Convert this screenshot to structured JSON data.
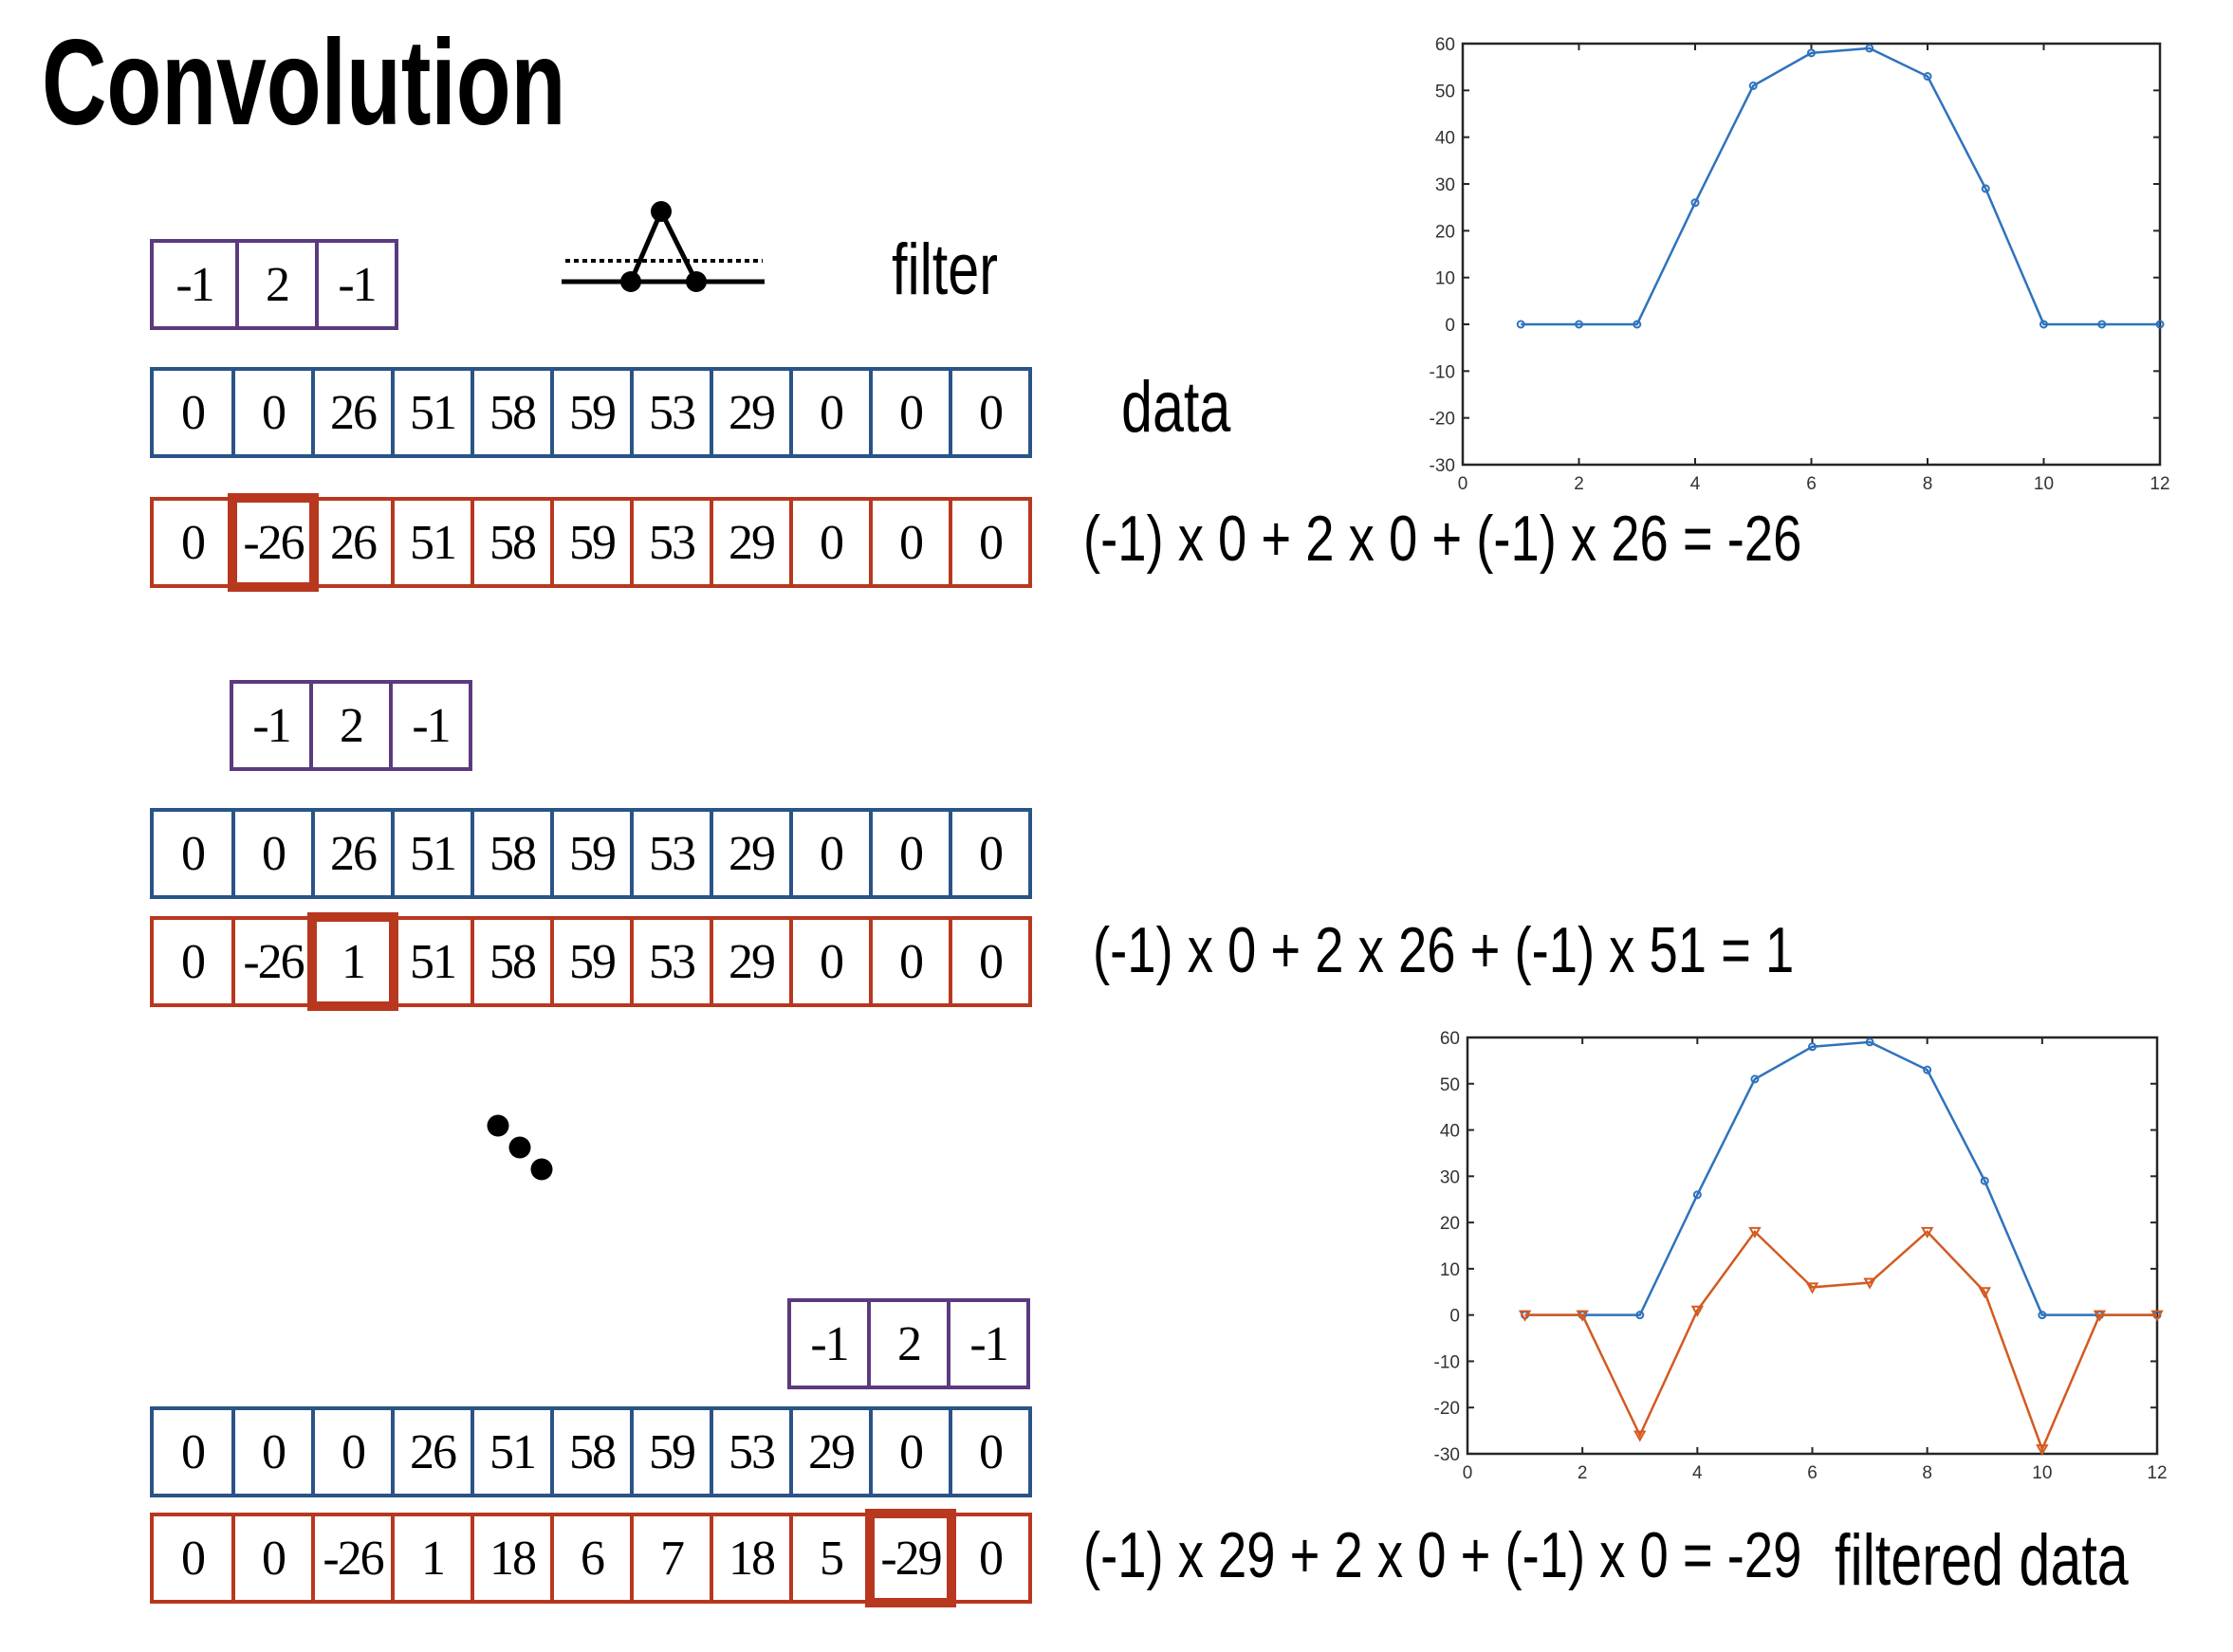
{
  "title": "Convolution",
  "labels": {
    "filter": "filter",
    "data": "data",
    "filtered_data": "filtered data"
  },
  "icons": {
    "filter_shape": "filter-kernel-icon",
    "ellipsis": "ellipsis-dots-icon"
  },
  "colors": {
    "filter_border": "#5B3A7E",
    "data_border": "#2A5487",
    "result_border": "#B8381F",
    "plot_data": "#2F72BD",
    "plot_filtered": "#D35A21"
  },
  "steps": [
    {
      "filter": [
        "-1",
        "2",
        "-1"
      ],
      "filter_offset": 0,
      "data": [
        "0",
        "0",
        "26",
        "51",
        "58",
        "59",
        "53",
        "29",
        "0",
        "0",
        "0"
      ],
      "result": [
        "0",
        "-26",
        "26",
        "51",
        "58",
        "59",
        "53",
        "29",
        "0",
        "0",
        "0"
      ],
      "highlight_index": 1,
      "equation": "(-1) x 0 + 2 x 0 + (-1) x 26 = -26"
    },
    {
      "filter": [
        "-1",
        "2",
        "-1"
      ],
      "filter_offset": 1,
      "data": [
        "0",
        "0",
        "26",
        "51",
        "58",
        "59",
        "53",
        "29",
        "0",
        "0",
        "0"
      ],
      "result": [
        "0",
        "-26",
        "1",
        "51",
        "58",
        "59",
        "53",
        "29",
        "0",
        "0",
        "0"
      ],
      "highlight_index": 2,
      "equation": "(-1) x 0 + 2 x 26 + (-1) x 51 = 1"
    },
    {
      "filter": [
        "-1",
        "2",
        "-1"
      ],
      "filter_offset": 8,
      "data": [
        "0",
        "0",
        "0",
        "26",
        "51",
        "58",
        "59",
        "53",
        "29",
        "0",
        "0"
      ],
      "result": [
        "0",
        "0",
        "-26",
        "1",
        "18",
        "6",
        "7",
        "18",
        "5",
        "-29",
        "0"
      ],
      "highlight_index": 9,
      "equation": "(-1) x 29 + 2 x 0 + (-1) x 0 = -29"
    }
  ],
  "chart_data": [
    {
      "type": "line",
      "title": "",
      "xlabel": "",
      "ylabel": "",
      "xlim": [
        0,
        12
      ],
      "ylim": [
        -30,
        60
      ],
      "xticks": [
        0,
        2,
        4,
        6,
        8,
        10,
        12
      ],
      "yticks": [
        -30,
        -20,
        -10,
        0,
        10,
        20,
        30,
        40,
        50,
        60
      ],
      "grid": false,
      "legend": null,
      "x": [
        1,
        2,
        3,
        4,
        5,
        6,
        7,
        8,
        9,
        10,
        11,
        12
      ],
      "series": [
        {
          "name": "data",
          "color": "#2F72BD",
          "marker": "circle",
          "values": [
            0,
            0,
            0,
            26,
            51,
            58,
            59,
            53,
            29,
            0,
            0,
            0
          ]
        }
      ]
    },
    {
      "type": "line",
      "title": "",
      "xlabel": "",
      "ylabel": "",
      "xlim": [
        0,
        12
      ],
      "ylim": [
        -30,
        60
      ],
      "xticks": [
        0,
        2,
        4,
        6,
        8,
        10,
        12
      ],
      "yticks": [
        -30,
        -20,
        -10,
        0,
        10,
        20,
        30,
        40,
        50,
        60
      ],
      "grid": false,
      "legend": null,
      "x": [
        1,
        2,
        3,
        4,
        5,
        6,
        7,
        8,
        9,
        10,
        11,
        12
      ],
      "series": [
        {
          "name": "data",
          "color": "#2F72BD",
          "marker": "circle",
          "values": [
            0,
            0,
            0,
            26,
            51,
            58,
            59,
            53,
            29,
            0,
            0,
            0
          ]
        },
        {
          "name": "filtered data",
          "color": "#D35A21",
          "marker": "triangle-down",
          "values": [
            0,
            0,
            -26,
            1,
            18,
            6,
            7,
            18,
            5,
            -29,
            0,
            0
          ]
        }
      ]
    }
  ]
}
